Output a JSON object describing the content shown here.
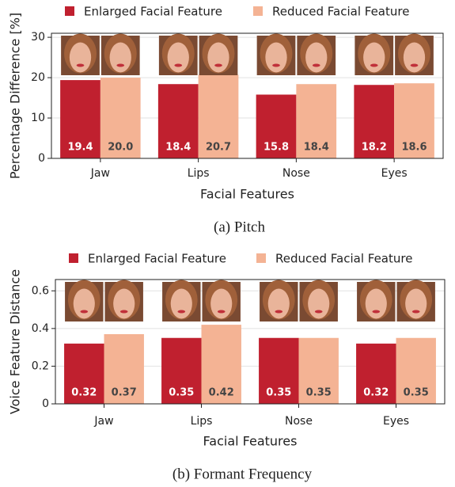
{
  "chart_data": [
    {
      "type": "bar",
      "caption": "(a) Pitch",
      "xlabel": "Facial Features",
      "ylabel": "Percentage Difference [%]",
      "categories": [
        "Jaw",
        "Lips",
        "Nose",
        "Eyes"
      ],
      "series": [
        {
          "name": "Enlarged Facial Feature",
          "color": "#c0202f",
          "values": [
            19.4,
            18.4,
            15.8,
            18.2
          ],
          "value_labels": [
            "19.4",
            "18.4",
            "15.8",
            "18.2"
          ]
        },
        {
          "name": "Reduced Facial Feature",
          "color": "#f4b394",
          "values": [
            20.0,
            20.7,
            18.4,
            18.6
          ],
          "value_labels": [
            "20.0",
            "20.7",
            "18.4",
            "18.6"
          ]
        }
      ],
      "ylim": [
        0,
        31
      ],
      "yticks": [
        0,
        10,
        20,
        30
      ],
      "grid": true
    },
    {
      "type": "bar",
      "caption": "(b) Formant Frequency",
      "xlabel": "Facial Features",
      "ylabel": "Voice Feature Distance",
      "categories": [
        "Jaw",
        "Lips",
        "Nose",
        "Eyes"
      ],
      "series": [
        {
          "name": "Enlarged Facial Feature",
          "color": "#c0202f",
          "values": [
            0.32,
            0.35,
            0.35,
            0.32
          ]
        },
        {
          "name": "Reduced Facial Feature",
          "color": "#f4b394",
          "values": [
            0.37,
            0.42,
            0.35,
            0.35
          ]
        }
      ],
      "ylim": [
        0,
        0.66
      ],
      "yticks": [
        0,
        0.2,
        0.4,
        0.6
      ],
      "grid": true
    }
  ]
}
